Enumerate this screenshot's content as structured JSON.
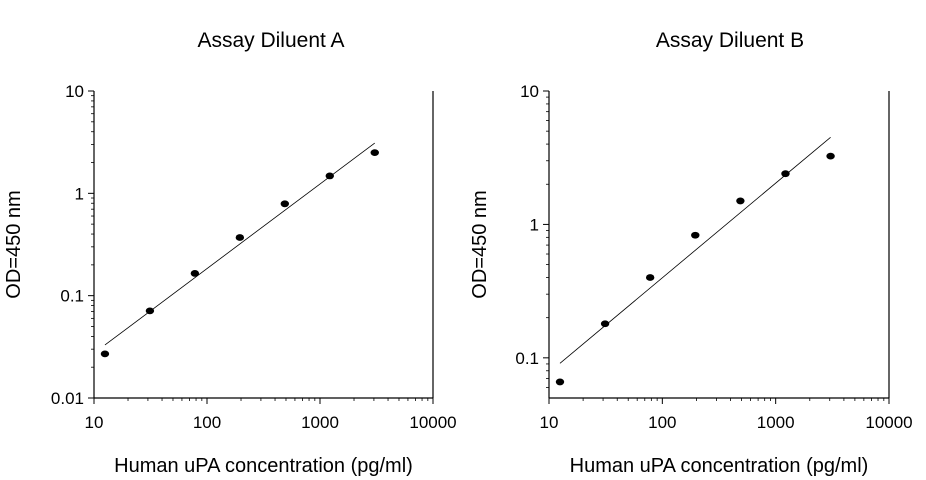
{
  "chart_data": [
    {
      "type": "scatter",
      "title": "Assay Diluent A",
      "xlabel": "Human uPA concentration (pg/ml)",
      "ylabel": "OD=450 nm",
      "xscale": "log",
      "yscale": "log",
      "xlim": [
        10,
        10000
      ],
      "ylim": [
        0.01,
        10
      ],
      "xticks": [
        10,
        100,
        1000,
        10000
      ],
      "xtick_labels": [
        "10",
        "100",
        "1000",
        "10000"
      ],
      "yticks": [
        0.01,
        0.1,
        1,
        10
      ],
      "ytick_labels": [
        "0.01",
        "0.1",
        "1",
        "10"
      ],
      "grid": false,
      "series": [
        {
          "x": [
            12.5,
            31.25,
            78.1,
            195.3,
            488.3,
            1220.7,
            3051.8
          ],
          "y": [
            0.027,
            0.071,
            0.165,
            0.37,
            0.79,
            1.48,
            2.5
          ]
        }
      ],
      "fit_line": {
        "x": [
          12.5,
          3051.8
        ],
        "y": [
          0.033,
          3.1
        ]
      }
    },
    {
      "type": "scatter",
      "title": "Assay Diluent B",
      "xlabel": "Human uPA concentration (pg/ml)",
      "ylabel": "OD=450 nm",
      "xscale": "log",
      "yscale": "log",
      "xlim": [
        10,
        10000
      ],
      "ylim": [
        0.05,
        10
      ],
      "xticks": [
        10,
        100,
        1000,
        10000
      ],
      "xtick_labels": [
        "10",
        "100",
        "1000",
        "10000"
      ],
      "yticks": [
        0.1,
        1,
        10
      ],
      "ytick_labels": [
        "0.1",
        "1",
        "10"
      ],
      "grid": false,
      "series": [
        {
          "x": [
            12.5,
            31.25,
            78.1,
            195.3,
            488.3,
            1220.7,
            3051.8
          ],
          "y": [
            0.066,
            0.18,
            0.4,
            0.83,
            1.5,
            2.4,
            3.25
          ]
        }
      ],
      "fit_line": {
        "x": [
          12.5,
          3051.8
        ],
        "y": [
          0.091,
          4.5
        ]
      }
    }
  ]
}
